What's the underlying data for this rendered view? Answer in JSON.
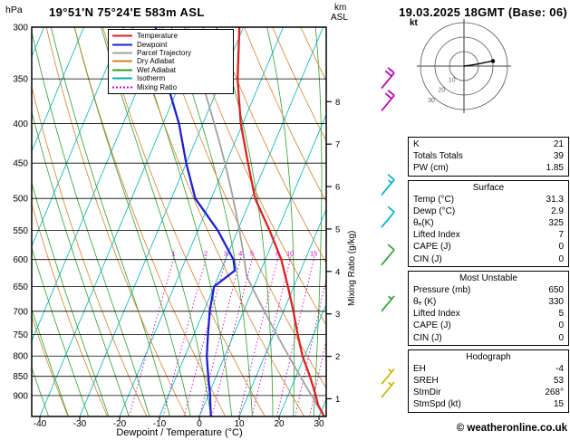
{
  "header": {
    "title": "19°51'N 75°24'E 583m ASL",
    "datetime": "19.03.2025 18GMT (Base: 06)"
  },
  "labels": {
    "hpa": "hPa",
    "km": "km",
    "asl": "ASL",
    "kt": "kt",
    "xaxis": "Dewpoint / Temperature (°C)",
    "mixing_ratio_axis": "Mixing Ratio (g/kg)"
  },
  "legend": {
    "items": [
      {
        "label": "Temperature",
        "color": "#e02020",
        "dash": ""
      },
      {
        "label": "Dewpoint",
        "color": "#2020d0",
        "dash": ""
      },
      {
        "label": "Parcel Trajectory",
        "color": "#a0a0a0",
        "dash": ""
      },
      {
        "label": "Dry Adiabat",
        "color": "#d2822d",
        "dash": ""
      },
      {
        "label": "Wet Adiabat",
        "color": "#2da02d",
        "dash": ""
      },
      {
        "label": "Isotherm",
        "color": "#00b2b2",
        "dash": ""
      },
      {
        "label": "Mixing Ratio",
        "color": "#cc00cc",
        "dash": "2 2"
      }
    ]
  },
  "panel": {
    "sections": [
      {
        "header": "",
        "rows": [
          [
            "K",
            "21"
          ],
          [
            "Totals Totals",
            "39"
          ],
          [
            "PW (cm)",
            "1.85"
          ]
        ]
      },
      {
        "header": "Surface",
        "rows": [
          [
            "Temp (°C)",
            "31.3"
          ],
          [
            "Dewp (°C)",
            "2.9"
          ],
          [
            "θₑ(K)",
            "325"
          ],
          [
            "Lifted Index",
            "7"
          ],
          [
            "CAPE (J)",
            "0"
          ],
          [
            "CIN (J)",
            "0"
          ]
        ]
      },
      {
        "header": "Most Unstable",
        "rows": [
          [
            "Pressure (mb)",
            "650"
          ],
          [
            "θₑ (K)",
            "330"
          ],
          [
            "Lifted Index",
            "5"
          ],
          [
            "CAPE (J)",
            "0"
          ],
          [
            "CIN (J)",
            "0"
          ]
        ]
      },
      {
        "header": "Hodograph",
        "rows": [
          [
            "EH",
            "-4"
          ],
          [
            "SREH",
            "53"
          ],
          [
            "StmDir",
            "268°"
          ],
          [
            "StmSpd (kt)",
            "15"
          ]
        ]
      }
    ]
  },
  "footer": {
    "copyright": "© weatheronline.co.uk"
  },
  "chart_data": {
    "type": "line",
    "subtype": "skew-t-log-p-sounding",
    "pressure_ticks_hpa": [
      300,
      350,
      400,
      450,
      500,
      550,
      600,
      650,
      700,
      750,
      800,
      850,
      900
    ],
    "pressure_range_hpa": [
      300,
      958
    ],
    "temp_ticks_c": [
      -40,
      -30,
      -20,
      -10,
      0,
      10,
      20,
      30
    ],
    "km_asl_ticks": [
      1,
      2,
      3,
      4,
      5,
      6,
      7,
      8
    ],
    "station_elevation_km": 0.583,
    "mixing_ratio_lines_gkg": [
      1,
      2,
      3,
      4,
      5,
      8,
      10,
      15,
      20,
      25
    ],
    "isotherm_step_c": 10,
    "dry_adiabat_step_c": 10,
    "wet_adiabat_step_c": 5,
    "grid_colors": {
      "isobar": "#000000",
      "isotherm": "#00b2b2",
      "dry_adiabat": "#d2822d",
      "wet_adiabat": "#2da02d",
      "mixing_ratio": "#cc00cc"
    },
    "series": [
      {
        "name": "Temperature",
        "color": "#e02020",
        "points_p_hpa_t_c": [
          [
            958,
            31.3
          ],
          [
            925,
            28.5
          ],
          [
            900,
            27
          ],
          [
            850,
            23.5
          ],
          [
            800,
            19.5
          ],
          [
            750,
            16
          ],
          [
            700,
            12.5
          ],
          [
            650,
            8.5
          ],
          [
            600,
            4
          ],
          [
            550,
            -2
          ],
          [
            500,
            -9
          ],
          [
            450,
            -14.5
          ],
          [
            400,
            -20.5
          ],
          [
            350,
            -26
          ],
          [
            300,
            -31
          ]
        ]
      },
      {
        "name": "Dewpoint",
        "color": "#2020d0",
        "points_p_hpa_t_c": [
          [
            958,
            2.9
          ],
          [
            925,
            1.5
          ],
          [
            900,
            0.5
          ],
          [
            850,
            -2
          ],
          [
            800,
            -4.5
          ],
          [
            750,
            -6.5
          ],
          [
            700,
            -8.5
          ],
          [
            650,
            -10
          ],
          [
            620,
            -6.5
          ],
          [
            600,
            -8
          ],
          [
            550,
            -15
          ],
          [
            500,
            -24
          ],
          [
            450,
            -30
          ],
          [
            400,
            -36
          ],
          [
            350,
            -44
          ],
          [
            300,
            -52
          ]
        ]
      },
      {
        "name": "Parcel Trajectory",
        "color": "#a0a0a0",
        "start": {
          "p_hpa": 958,
          "temp_c": 31.3,
          "dewp_c": 2.9
        }
      }
    ],
    "wind_barbs": [
      {
        "p_hpa": 360,
        "speed_kt": 20,
        "color": "#b400b4"
      },
      {
        "p_hpa": 385,
        "speed_kt": 20,
        "color": "#b400b4"
      },
      {
        "p_hpa": 495,
        "speed_kt": 15,
        "color": "#00b2cc"
      },
      {
        "p_hpa": 545,
        "speed_kt": 10,
        "color": "#00b2cc"
      },
      {
        "p_hpa": 610,
        "speed_kt": 10,
        "color": "#2da02d"
      },
      {
        "p_hpa": 700,
        "speed_kt": 5,
        "color": "#2da02d"
      },
      {
        "p_hpa": 870,
        "speed_kt": 5,
        "color": "#ccb400"
      },
      {
        "p_hpa": 905,
        "speed_kt": 5,
        "color": "#ccb400"
      }
    ],
    "hodograph": {
      "unit": "kt",
      "rings_kt": [
        10,
        20,
        30
      ],
      "trace_kt_uv": [
        [
          0,
          0
        ],
        [
          4,
          0.5
        ],
        [
          10,
          1.5
        ],
        [
          17,
          3
        ],
        [
          20,
          3.5
        ]
      ],
      "marker_kt_uv": [
        20,
        3.5
      ]
    }
  }
}
